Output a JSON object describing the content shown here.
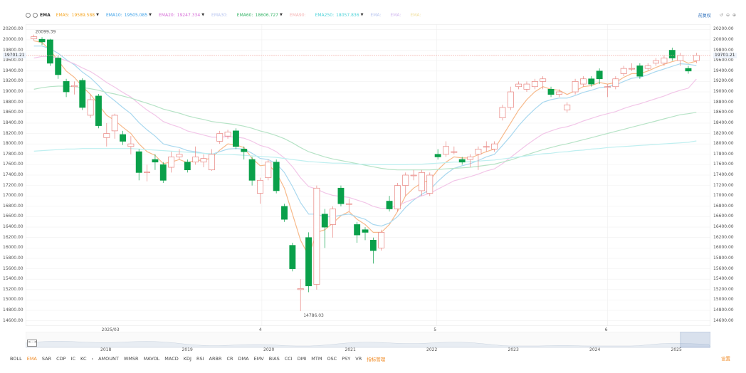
{
  "toolbar": {
    "indicator_name": "EMA",
    "series": [
      {
        "label": "EMA5:",
        "value": "19589.588",
        "color": "#f5a623",
        "active": true
      },
      {
        "label": "EMA10:",
        "value": "19505.085",
        "color": "#3aa0e8",
        "active": true
      },
      {
        "label": "EMA20:",
        "value": "19247.334",
        "color": "#d56bd6",
        "active": true
      },
      {
        "label": "EMA30:",
        "value": "",
        "color": "#b9c6f0",
        "active": false
      },
      {
        "label": "EMA60:",
        "value": "18606.727",
        "color": "#39b56a",
        "active": true
      },
      {
        "label": "EMA90:",
        "value": "",
        "color": "#f5b3b3",
        "active": false
      },
      {
        "label": "EMA250:",
        "value": "18057.836",
        "color": "#4fd3d9",
        "active": true
      },
      {
        "label": "EMA:",
        "value": "",
        "color": "#b9c6f0",
        "active": false
      },
      {
        "label": "EMA:",
        "value": "",
        "color": "#d2b9f0",
        "active": false
      },
      {
        "label": "EMA:",
        "value": "",
        "color": "#f0e0a0",
        "active": false
      }
    ],
    "right_link": "前复权"
  },
  "yaxis_labels": [
    "20200.00",
    "20000.00",
    "19800.00",
    "19600.00",
    "19400.00",
    "19200.00",
    "19000.00",
    "18800.00",
    "18600.00",
    "18400.00",
    "18200.00",
    "18000.00",
    "17800.00",
    "17600.00",
    "17400.00",
    "17200.00",
    "17000.00",
    "16800.00",
    "16600.00",
    "16400.00",
    "16200.00",
    "16000.00",
    "15800.00",
    "15600.00",
    "15400.00",
    "15200.00",
    "15000.00",
    "14800.00",
    "14600.00"
  ],
  "current_price_label": "19701.21",
  "annotations": {
    "high": "20099.39",
    "low": "14786.03"
  },
  "xaxis_labels": [
    "2025/03",
    "4",
    "5",
    "6"
  ],
  "navigator_years": [
    "2018",
    "2019",
    "2020",
    "2021",
    "2022",
    "2023",
    "2024",
    "2025"
  ],
  "navigator_scroll": "<···>",
  "chart_data": {
    "type": "candlestick",
    "y_range": [
      14500,
      20300
    ],
    "candles": [
      {
        "o": 20020,
        "c": 20060,
        "h": 20099,
        "l": 19980
      },
      {
        "o": 20010,
        "c": 19960,
        "h": 20050,
        "l": 19900
      },
      {
        "o": 20000,
        "c": 19550,
        "h": 20020,
        "l": 19500
      },
      {
        "o": 19650,
        "c": 19330,
        "h": 19700,
        "l": 19250
      },
      {
        "o": 19200,
        "c": 19000,
        "h": 19250,
        "l": 18900
      },
      {
        "o": 19100,
        "c": 19120,
        "h": 19200,
        "l": 18950
      },
      {
        "o": 19220,
        "c": 18700,
        "h": 19260,
        "l": 18650
      },
      {
        "o": 18550,
        "c": 18850,
        "h": 18950,
        "l": 18500
      },
      {
        "o": 18920,
        "c": 18350,
        "h": 18960,
        "l": 18300
      },
      {
        "o": 18120,
        "c": 18200,
        "h": 18400,
        "l": 17950
      },
      {
        "o": 18250,
        "c": 18550,
        "h": 18580,
        "l": 18100
      },
      {
        "o": 18180,
        "c": 18050,
        "h": 18250,
        "l": 17980
      },
      {
        "o": 17950,
        "c": 18000,
        "h": 18150,
        "l": 17800
      },
      {
        "o": 17850,
        "c": 17450,
        "h": 17900,
        "l": 17300
      },
      {
        "o": 17450,
        "c": 17460,
        "h": 17600,
        "l": 17280
      },
      {
        "o": 17700,
        "c": 17650,
        "h": 17800,
        "l": 17500
      },
      {
        "o": 17600,
        "c": 17300,
        "h": 17650,
        "l": 17250
      },
      {
        "o": 17550,
        "c": 17750,
        "h": 17850,
        "l": 17450
      },
      {
        "o": 17750,
        "c": 17800,
        "h": 17900,
        "l": 17700
      },
      {
        "o": 17650,
        "c": 17500,
        "h": 17700,
        "l": 17450
      },
      {
        "o": 17650,
        "c": 17750,
        "h": 17950,
        "l": 17600
      },
      {
        "o": 17650,
        "c": 17720,
        "h": 17800,
        "l": 17550
      },
      {
        "o": 17500,
        "c": 17800,
        "h": 17900,
        "l": 17480
      },
      {
        "o": 18050,
        "c": 18200,
        "h": 18250,
        "l": 18000
      },
      {
        "o": 18150,
        "c": 18230,
        "h": 18270,
        "l": 18100
      },
      {
        "o": 18250,
        "c": 17950,
        "h": 18300,
        "l": 17900
      },
      {
        "o": 17900,
        "c": 17850,
        "h": 17950,
        "l": 17700
      },
      {
        "o": 17700,
        "c": 17300,
        "h": 17750,
        "l": 17200
      },
      {
        "o": 17050,
        "c": 17300,
        "h": 17350,
        "l": 16850
      },
      {
        "o": 17350,
        "c": 17650,
        "h": 17700,
        "l": 17300
      },
      {
        "o": 17650,
        "c": 17100,
        "h": 17700,
        "l": 17050
      },
      {
        "o": 16800,
        "c": 16550,
        "h": 16850,
        "l": 16500
      },
      {
        "o": 16050,
        "c": 15600,
        "h": 16100,
        "l": 15550
      },
      {
        "o": 15200,
        "c": 15220,
        "h": 15400,
        "l": 14786
      },
      {
        "o": 16200,
        "c": 15270,
        "h": 16300,
        "l": 15150
      },
      {
        "o": 15300,
        "c": 17150,
        "h": 17200,
        "l": 15200
      },
      {
        "o": 16650,
        "c": 16400,
        "h": 16750,
        "l": 16000
      },
      {
        "o": 16450,
        "c": 16750,
        "h": 16800,
        "l": 16200
      },
      {
        "o": 17150,
        "c": 16850,
        "h": 17200,
        "l": 16800
      },
      {
        "o": 16850,
        "c": 16850,
        "h": 16950,
        "l": 16700
      },
      {
        "o": 16450,
        "c": 16250,
        "h": 16500,
        "l": 16100
      },
      {
        "o": 16350,
        "c": 16300,
        "h": 16400,
        "l": 16150
      },
      {
        "o": 16150,
        "c": 15950,
        "h": 16200,
        "l": 15700
      },
      {
        "o": 16000,
        "c": 16300,
        "h": 16350,
        "l": 15950
      },
      {
        "o": 16900,
        "c": 16750,
        "h": 17000,
        "l": 16700
      },
      {
        "o": 16750,
        "c": 17200,
        "h": 17250,
        "l": 16700
      },
      {
        "o": 17200,
        "c": 17400,
        "h": 17450,
        "l": 17000
      },
      {
        "o": 17400,
        "c": 17400,
        "h": 17500,
        "l": 17300
      },
      {
        "o": 17100,
        "c": 17450,
        "h": 17500,
        "l": 17000
      },
      {
        "o": 17050,
        "c": 17400,
        "h": 17450,
        "l": 17000
      },
      {
        "o": 17800,
        "c": 17750,
        "h": 17900,
        "l": 17700
      },
      {
        "o": 17800,
        "c": 17950,
        "h": 18050,
        "l": 17750
      },
      {
        "o": 17850,
        "c": 17850,
        "h": 17950,
        "l": 17800
      },
      {
        "o": 17700,
        "c": 17650,
        "h": 17750,
        "l": 17600
      },
      {
        "o": 17700,
        "c": 17750,
        "h": 17800,
        "l": 17550
      },
      {
        "o": 17800,
        "c": 17900,
        "h": 17950,
        "l": 17500
      },
      {
        "o": 17950,
        "c": 17950,
        "h": 18050,
        "l": 17850
      },
      {
        "o": 17900,
        "c": 18000,
        "h": 18050,
        "l": 17850
      },
      {
        "o": 18500,
        "c": 18700,
        "h": 18750,
        "l": 18450
      },
      {
        "o": 18700,
        "c": 19000,
        "h": 19100,
        "l": 18650
      },
      {
        "o": 19100,
        "c": 19150,
        "h": 19200,
        "l": 19050
      },
      {
        "o": 19050,
        "c": 19150,
        "h": 19200,
        "l": 19000
      },
      {
        "o": 19100,
        "c": 19200,
        "h": 19250,
        "l": 19050
      },
      {
        "o": 19200,
        "c": 19250,
        "h": 19300,
        "l": 19050
      },
      {
        "o": 19050,
        "c": 18950,
        "h": 19100,
        "l": 18900
      },
      {
        "o": 18950,
        "c": 19000,
        "h": 19050,
        "l": 18900
      },
      {
        "o": 18650,
        "c": 18750,
        "h": 18800,
        "l": 18600
      },
      {
        "o": 19000,
        "c": 19200,
        "h": 19250,
        "l": 18950
      },
      {
        "o": 19150,
        "c": 19250,
        "h": 19300,
        "l": 19100
      },
      {
        "o": 19250,
        "c": 19150,
        "h": 19300,
        "l": 19100
      },
      {
        "o": 19400,
        "c": 19250,
        "h": 19450,
        "l": 19150
      },
      {
        "o": 19100,
        "c": 19100,
        "h": 19150,
        "l": 18900
      },
      {
        "o": 19100,
        "c": 19250,
        "h": 19300,
        "l": 19050
      },
      {
        "o": 19350,
        "c": 19450,
        "h": 19500,
        "l": 19300
      },
      {
        "o": 19450,
        "c": 19450,
        "h": 19550,
        "l": 19400
      },
      {
        "o": 19500,
        "c": 19300,
        "h": 19550,
        "l": 19250
      },
      {
        "o": 19450,
        "c": 19500,
        "h": 19550,
        "l": 19400
      },
      {
        "o": 19550,
        "c": 19600,
        "h": 19650,
        "l": 19500
      },
      {
        "o": 19550,
        "c": 19650,
        "h": 19700,
        "l": 19500
      },
      {
        "o": 19800,
        "c": 19650,
        "h": 19850,
        "l": 19600
      },
      {
        "o": 19600,
        "c": 19700,
        "h": 19750,
        "l": 19500
      },
      {
        "o": 19450,
        "c": 19400,
        "h": 19500,
        "l": 19350
      },
      {
        "o": 19600,
        "c": 19701,
        "h": 19750,
        "l": 19550
      }
    ],
    "ema_lines": [
      {
        "name": "EMA5",
        "color": "#f7b98a",
        "values": [
          19980,
          19950,
          19800,
          19600,
          19400,
          19280,
          19100,
          18950,
          18750,
          18550,
          18450,
          18320,
          18200,
          18000,
          17850,
          17780,
          17620,
          17650,
          17700,
          17640,
          17680,
          17690,
          17730,
          17880,
          18000,
          17980,
          17930,
          17720,
          17580,
          17600,
          17450,
          17150,
          16650,
          16150,
          15850,
          16300,
          16350,
          16480,
          16620,
          16700,
          16550,
          16450,
          16300,
          16300,
          16450,
          16700,
          17000,
          17150,
          17250,
          17300,
          17500,
          17650,
          17750,
          17730,
          17730,
          17790,
          17850,
          17900,
          18150,
          18400,
          18650,
          18850,
          19000,
          19100,
          19050,
          19030,
          18950,
          19020,
          19100,
          19120,
          19180,
          19150,
          19180,
          19280,
          19350,
          19350,
          19400,
          19470,
          19530,
          19580,
          19620,
          19550,
          19589
        ]
      },
      {
        "name": "EMA10",
        "color": "#a9d8ef",
        "values": [
          19880,
          19880,
          19830,
          19740,
          19620,
          19520,
          19380,
          19270,
          19120,
          18950,
          18830,
          18700,
          18580,
          18410,
          18270,
          18150,
          18000,
          17960,
          17930,
          17870,
          17850,
          17820,
          17800,
          17850,
          17900,
          17910,
          17900,
          17820,
          17720,
          17700,
          17620,
          17450,
          17180,
          16870,
          16650,
          16650,
          16600,
          16600,
          16630,
          16650,
          16600,
          16550,
          16450,
          16420,
          16480,
          16600,
          16780,
          16920,
          17030,
          17120,
          17280,
          17420,
          17530,
          17580,
          17620,
          17680,
          17750,
          17800,
          17970,
          18150,
          18350,
          18520,
          18670,
          18800,
          18850,
          18880,
          18880,
          18930,
          18990,
          19030,
          19080,
          19100,
          19130,
          19200,
          19260,
          19280,
          19330,
          19390,
          19440,
          19490,
          19540,
          19530,
          19505
        ]
      },
      {
        "name": "EMA20",
        "color": "#f2c6e8",
        "values": [
          19650,
          19680,
          19680,
          19650,
          19600,
          19540,
          19460,
          19390,
          19290,
          19180,
          19090,
          18990,
          18900,
          18770,
          18650,
          18550,
          18430,
          18370,
          18320,
          18250,
          18210,
          18170,
          18130,
          18130,
          18140,
          18130,
          18110,
          18050,
          17970,
          17930,
          17850,
          17730,
          17560,
          17350,
          17180,
          17130,
          17060,
          17010,
          16990,
          16970,
          16920,
          16870,
          16800,
          16760,
          16770,
          16810,
          16880,
          16940,
          17000,
          17050,
          17130,
          17210,
          17290,
          17330,
          17370,
          17420,
          17480,
          17520,
          17620,
          17740,
          17860,
          17980,
          18090,
          18190,
          18250,
          18300,
          18330,
          18380,
          18440,
          18490,
          18540,
          18580,
          18620,
          18680,
          18730,
          18770,
          18820,
          18870,
          18920,
          18980,
          19030,
          19070,
          19247
        ]
      },
      {
        "name": "EMA60",
        "color": "#b6e3c6",
        "values": [
          19050,
          19080,
          19100,
          19110,
          19110,
          19100,
          19080,
          19060,
          19030,
          18990,
          18960,
          18920,
          18880,
          18830,
          18780,
          18730,
          18670,
          18630,
          18590,
          18540,
          18500,
          18470,
          18430,
          18410,
          18390,
          18370,
          18340,
          18300,
          18250,
          18210,
          18160,
          18100,
          18020,
          17930,
          17850,
          17800,
          17750,
          17710,
          17680,
          17650,
          17620,
          17590,
          17560,
          17530,
          17510,
          17500,
          17500,
          17500,
          17500,
          17500,
          17510,
          17520,
          17530,
          17540,
          17550,
          17570,
          17590,
          17610,
          17650,
          17690,
          17740,
          17790,
          17840,
          17890,
          17930,
          17970,
          18000,
          18040,
          18080,
          18120,
          18160,
          18200,
          18240,
          18280,
          18320,
          18360,
          18400,
          18440,
          18480,
          18520,
          18560,
          18580,
          18606
        ]
      },
      {
        "name": "EMA250",
        "color": "#bfeff0",
        "values": [
          17860,
          17870,
          17880,
          17890,
          17900,
          17900,
          17910,
          17910,
          17910,
          17910,
          17910,
          17910,
          17910,
          17900,
          17890,
          17880,
          17870,
          17860,
          17850,
          17840,
          17830,
          17820,
          17810,
          17800,
          17800,
          17790,
          17780,
          17770,
          17760,
          17750,
          17740,
          17720,
          17700,
          17680,
          17660,
          17650,
          17640,
          17630,
          17630,
          17620,
          17610,
          17610,
          17600,
          17600,
          17600,
          17600,
          17600,
          17610,
          17610,
          17620,
          17630,
          17640,
          17650,
          17650,
          17660,
          17670,
          17680,
          17690,
          17710,
          17730,
          17750,
          17770,
          17790,
          17810,
          17820,
          17840,
          17850,
          17870,
          17880,
          17900,
          17910,
          17930,
          17940,
          17950,
          17960,
          17970,
          17980,
          17990,
          18000,
          18010,
          18020,
          18030,
          18057
        ]
      }
    ]
  },
  "tabs": [
    "BOLL",
    "EMA",
    "SAR",
    "CDP",
    "IC",
    "KC",
    "›",
    "AMOUNT",
    "WMSR",
    "MAVOL",
    "MACD",
    "KDJ",
    "RSI",
    "ARBR",
    "CR",
    "DMA",
    "EMV",
    "BIAS",
    "CCI",
    "DMI",
    "MTM",
    "OSC",
    "PSY",
    "VR",
    "指标管理"
  ],
  "active_tab": "EMA",
  "settings_label": "设置"
}
